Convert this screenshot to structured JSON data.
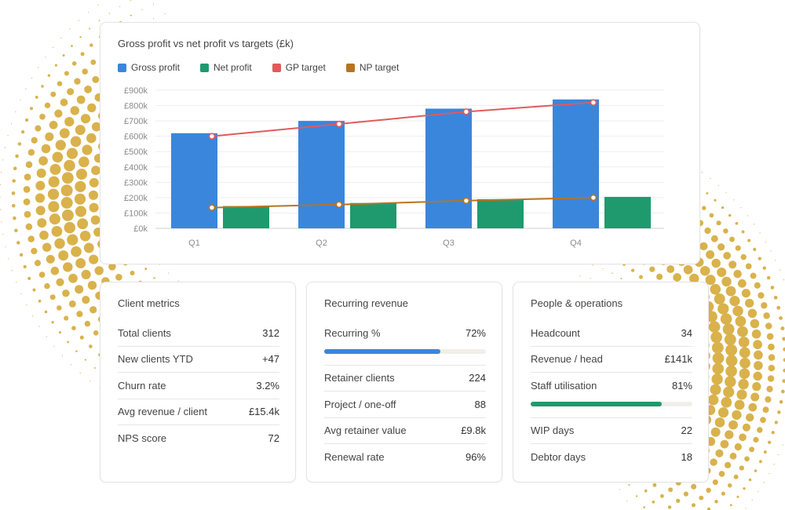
{
  "colors": {
    "gross_profit": "#3a86dd",
    "net_profit": "#1f9a6e",
    "gp_target": "#e05b5b",
    "np_target": "#b8741e",
    "dots": "#d9b24c"
  },
  "chart_data": {
    "type": "bar",
    "title": "Gross profit vs net profit vs targets (£k)",
    "categories": [
      "Q1",
      "Q2",
      "Q3",
      "Q4"
    ],
    "series": [
      {
        "name": "Gross profit",
        "kind": "bar",
        "values": [
          620,
          700,
          780,
          840
        ]
      },
      {
        "name": "Net profit",
        "kind": "bar",
        "values": [
          145,
          165,
          190,
          205
        ]
      },
      {
        "name": "GP target",
        "kind": "line",
        "values": [
          600,
          680,
          760,
          820
        ]
      },
      {
        "name": "NP target",
        "kind": "line",
        "values": [
          135,
          155,
          180,
          200
        ]
      }
    ],
    "ylim": [
      0,
      900
    ],
    "yticks": [
      0,
      100,
      200,
      300,
      400,
      500,
      600,
      700,
      800,
      900
    ],
    "ytick_labels": [
      "£0k",
      "£100k",
      "£200k",
      "£300k",
      "£400k",
      "£500k",
      "£600k",
      "£700k",
      "£800k",
      "£900k"
    ],
    "xlabel": "",
    "ylabel": "",
    "grid": true,
    "legend_position": "top-left"
  },
  "client": {
    "title": "Client metrics",
    "rows": [
      {
        "label": "Total clients",
        "value": "312"
      },
      {
        "label": "New clients YTD",
        "value": "+47"
      },
      {
        "label": "Churn rate",
        "value": "3.2%"
      },
      {
        "label": "Avg revenue / client",
        "value": "£15.4k"
      },
      {
        "label": "NPS score",
        "value": "72"
      }
    ]
  },
  "recurring": {
    "title": "Recurring revenue",
    "recurring_label": "Recurring %",
    "recurring_value": "72%",
    "recurring_fraction": 0.72,
    "rows": [
      {
        "label": "Retainer clients",
        "value": "224"
      },
      {
        "label": "Project / one-off",
        "value": "88"
      },
      {
        "label": "Avg retainer value",
        "value": "£9.8k"
      },
      {
        "label": "Renewal rate",
        "value": "96%"
      }
    ]
  },
  "people": {
    "title": "People & operations",
    "rows_top": [
      {
        "label": "Headcount",
        "value": "34"
      },
      {
        "label": "Revenue / head",
        "value": "£141k"
      }
    ],
    "utilisation_label": "Staff utilisation",
    "utilisation_value": "81%",
    "utilisation_fraction": 0.81,
    "rows_bottom": [
      {
        "label": "WIP days",
        "value": "22"
      },
      {
        "label": "Debtor days",
        "value": "18"
      }
    ]
  }
}
